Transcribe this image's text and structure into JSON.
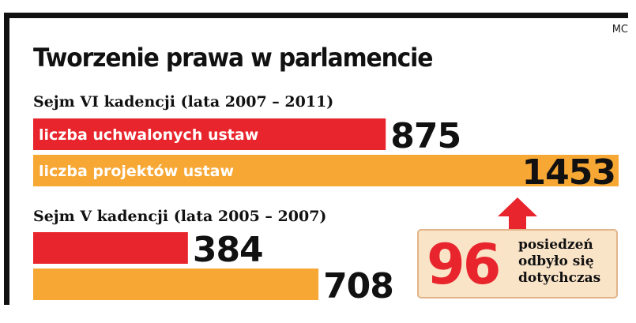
{
  "credit": "MC",
  "title": "Tworzenie prawa w parlamencie",
  "colors": {
    "red": "#e8252c",
    "orange": "#f7a734",
    "frame": "#111111",
    "callout_bg": "#fae4c8",
    "callout_border": "#e2b48a"
  },
  "chart_data": {
    "type": "bar",
    "orientation": "horizontal",
    "title": "Tworzenie prawa w parlamencie",
    "groups": [
      {
        "label": "Sejm VI kadencji (lata 2007 – 2011)",
        "bars": [
          {
            "label": "liczba uchwalonych ustaw",
            "value": 875,
            "color": "#e8252c"
          },
          {
            "label": "liczba projektów ustaw",
            "value": 1453,
            "color": "#f7a734"
          }
        ]
      },
      {
        "label": "Sejm V kadencji  (lata 2005 – 2007)",
        "bars": [
          {
            "label": "",
            "value": 384,
            "color": "#e8252c"
          },
          {
            "label": "",
            "value": 708,
            "color": "#f7a734"
          }
        ]
      }
    ],
    "xlim": [
      0,
      1453
    ],
    "grid": false,
    "legend": "none"
  },
  "callout": {
    "number": "96",
    "lines": [
      "posiedzeń",
      "odbyło się",
      "dotychczas"
    ]
  }
}
